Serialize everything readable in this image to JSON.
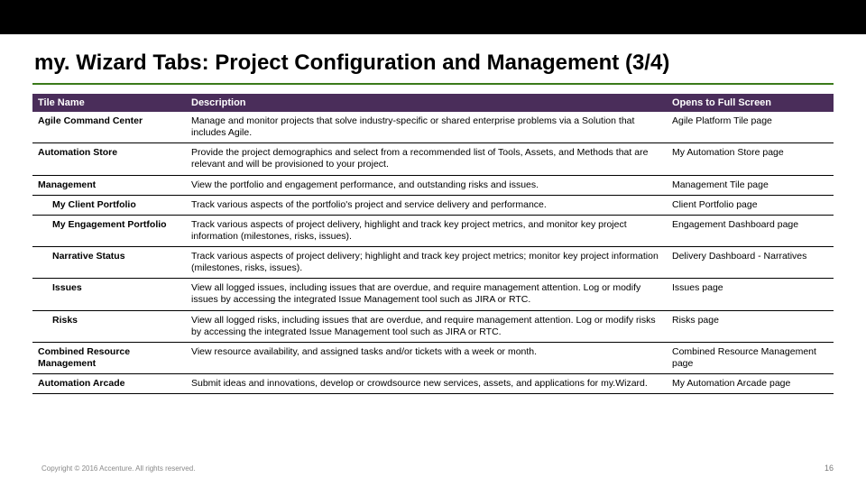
{
  "slide": {
    "title": "my. Wizard Tabs: Project Configuration and Management (3/4)",
    "rule_color": "#3a7a1a",
    "header_bg": "#4a2d5a",
    "header_fg": "#ffffff",
    "footer": "Copyright © 2016 Accenture. All rights reserved.",
    "page_number": "16",
    "columns": [
      "Tile Name",
      "Description",
      "Opens to Full Screen"
    ],
    "rows": [
      {
        "tile": "Agile Command Center",
        "indent": false,
        "desc": "Manage and monitor projects that solve industry-specific or shared enterprise problems via a Solution that includes Agile.",
        "opens": "Agile Platform Tile page"
      },
      {
        "tile": "Automation Store",
        "indent": false,
        "desc": "Provide the project demographics and select from a recommended list of Tools, Assets, and Methods that are relevant and will be provisioned to your project.",
        "opens": "My Automation Store page"
      },
      {
        "tile": "Management",
        "indent": false,
        "desc": "View the portfolio and engagement performance, and outstanding risks and issues.",
        "opens": "Management Tile page"
      },
      {
        "tile": "My Client Portfolio",
        "indent": true,
        "desc": "Track various aspects of the portfolio's project and service delivery and performance.",
        "opens": "Client Portfolio page"
      },
      {
        "tile": "My Engagement Portfolio",
        "indent": true,
        "desc": "Track various aspects of project delivery, highlight and track key project metrics, and monitor key project information (milestones, risks, issues).",
        "opens": "Engagement Dashboard page"
      },
      {
        "tile": "Narrative Status",
        "indent": true,
        "desc": "Track various aspects of project delivery; highlight and track key project metrics; monitor key project information (milestones, risks, issues).",
        "opens": "Delivery Dashboard - Narratives"
      },
      {
        "tile": "Issues",
        "indent": true,
        "desc": "View all logged issues, including issues that are overdue, and require management attention. Log or modify issues by accessing the integrated Issue Management tool such as JIRA or RTC.",
        "opens": "Issues page"
      },
      {
        "tile": "Risks",
        "indent": true,
        "desc": "View all logged risks, including issues that are overdue, and require management attention. Log or modify risks by accessing the integrated Issue Management tool such as JIRA or RTC.",
        "opens": "Risks page"
      },
      {
        "tile": "Combined Resource Management",
        "indent": false,
        "desc": "View resource availability, and assigned tasks and/or tickets with a week or month.",
        "opens": "Combined Resource Management page"
      },
      {
        "tile": "Automation Arcade",
        "indent": false,
        "desc": "Submit ideas and innovations, develop or crowdsource new services, assets, and applications for my.Wizard.",
        "opens": "My Automation Arcade page"
      }
    ]
  }
}
